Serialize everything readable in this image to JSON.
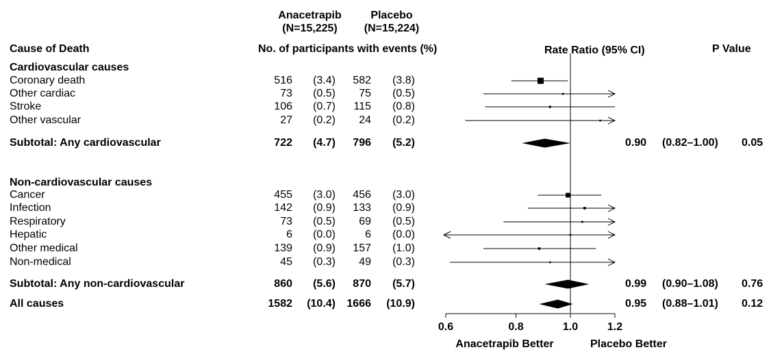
{
  "header": {
    "group1_name": "Anacetrapib",
    "group1_n": "(N=15,225)",
    "group2_name": "Placebo",
    "group2_n": "(N=15,224)",
    "cause_col": "Cause of Death",
    "events_col": "No. of participants with events (%)",
    "rr_col": "Rate Ratio (95% CI)",
    "p_col": "P Value"
  },
  "sections": {
    "cv_title": "Cardiovascular causes",
    "noncv_title": "Non-cardiovascular causes"
  },
  "chart_data": {
    "type": "forest",
    "x_scale": "log",
    "xlim": [
      0.6,
      1.2
    ],
    "reference_line": 1.0,
    "x_ticks": [
      "0.6",
      "0.8",
      "1.0",
      "1.2"
    ],
    "favors_left": "Anacetrapib Better",
    "favors_right": "Placebo Better",
    "rows": [
      {
        "label": "Coronary death",
        "bold": false,
        "marker": "square",
        "n1": "516",
        "p1": "(3.4)",
        "n2": "582",
        "p2": "(3.8)",
        "est": 0.885,
        "lo": 0.785,
        "hi": 0.99,
        "weight": 1.0
      },
      {
        "label": "Other cardiac",
        "bold": false,
        "marker": "square",
        "n1": "73",
        "p1": "(0.5)",
        "n2": "75",
        "p2": "(0.5)",
        "est": 0.97,
        "lo": 0.7,
        "hi": 1.34,
        "weight": 0.3
      },
      {
        "label": "Stroke",
        "bold": false,
        "marker": "square",
        "n1": "106",
        "p1": "(0.7)",
        "n2": "115",
        "p2": "(0.8)",
        "est": 0.92,
        "lo": 0.705,
        "hi": 1.2,
        "weight": 0.35
      },
      {
        "label": "Other vascular",
        "bold": false,
        "marker": "square",
        "n1": "27",
        "p1": "(0.2)",
        "n2": "24",
        "p2": "(0.2)",
        "est": 1.13,
        "lo": 0.65,
        "hi": 1.95,
        "weight": 0.2
      },
      {
        "label": "Subtotal: Any cardiovascular",
        "bold": true,
        "marker": "diamond",
        "n1": "722",
        "p1": "(4.7)",
        "n2": "796",
        "p2": "(5.2)",
        "est": 0.9,
        "lo": 0.82,
        "hi": 1.0,
        "ci_text": "0.90",
        "ci_range": "(0.82–1.00)",
        "p": "0.05"
      },
      {
        "label": "Cancer",
        "bold": false,
        "marker": "square",
        "n1": "455",
        "p1": "(3.0)",
        "n2": "456",
        "p2": "(3.0)",
        "est": 0.99,
        "lo": 0.875,
        "hi": 1.135,
        "weight": 0.75
      },
      {
        "label": "Infection",
        "bold": false,
        "marker": "square",
        "n1": "142",
        "p1": "(0.9)",
        "n2": "133",
        "p2": "(0.9)",
        "est": 1.06,
        "lo": 0.84,
        "hi": 1.35,
        "weight": 0.4
      },
      {
        "label": "Respiratory",
        "bold": false,
        "marker": "square",
        "n1": "73",
        "p1": "(0.5)",
        "n2": "69",
        "p2": "(0.5)",
        "est": 1.05,
        "lo": 0.76,
        "hi": 1.45,
        "weight": 0.3
      },
      {
        "label": "Hepatic",
        "bold": false,
        "marker": "square",
        "n1": "6",
        "p1": "(0.0)",
        "n2": "6",
        "p2": "(0.0)",
        "est": 1.0,
        "lo": 0.3,
        "hi": 3.2,
        "weight": 0.1
      },
      {
        "label": "Other medical",
        "bold": false,
        "marker": "square",
        "n1": "139",
        "p1": "(0.9)",
        "n2": "157",
        "p2": "(1.0)",
        "est": 0.88,
        "lo": 0.7,
        "hi": 1.11,
        "weight": 0.4
      },
      {
        "label": "Non-medical",
        "bold": false,
        "marker": "square",
        "n1": "45",
        "p1": "(0.3)",
        "n2": "49",
        "p2": "(0.3)",
        "est": 0.92,
        "lo": 0.61,
        "hi": 1.4,
        "weight": 0.25
      },
      {
        "label": "Subtotal: Any non-cardiovascular",
        "bold": true,
        "marker": "diamond",
        "n1": "860",
        "p1": "(5.6)",
        "n2": "870",
        "p2": "(5.7)",
        "est": 0.99,
        "lo": 0.9,
        "hi": 1.08,
        "ci_text": "0.99",
        "ci_range": "(0.90–1.08)",
        "p": "0.76"
      },
      {
        "label": "All causes",
        "bold": true,
        "marker": "diamond",
        "n1": "1582",
        "p1": "(10.4)",
        "n2": "1666",
        "p2": "(10.9)",
        "est": 0.95,
        "lo": 0.88,
        "hi": 1.01,
        "ci_text": "0.95",
        "ci_range": "(0.88–1.01)",
        "p": "0.12"
      }
    ]
  }
}
